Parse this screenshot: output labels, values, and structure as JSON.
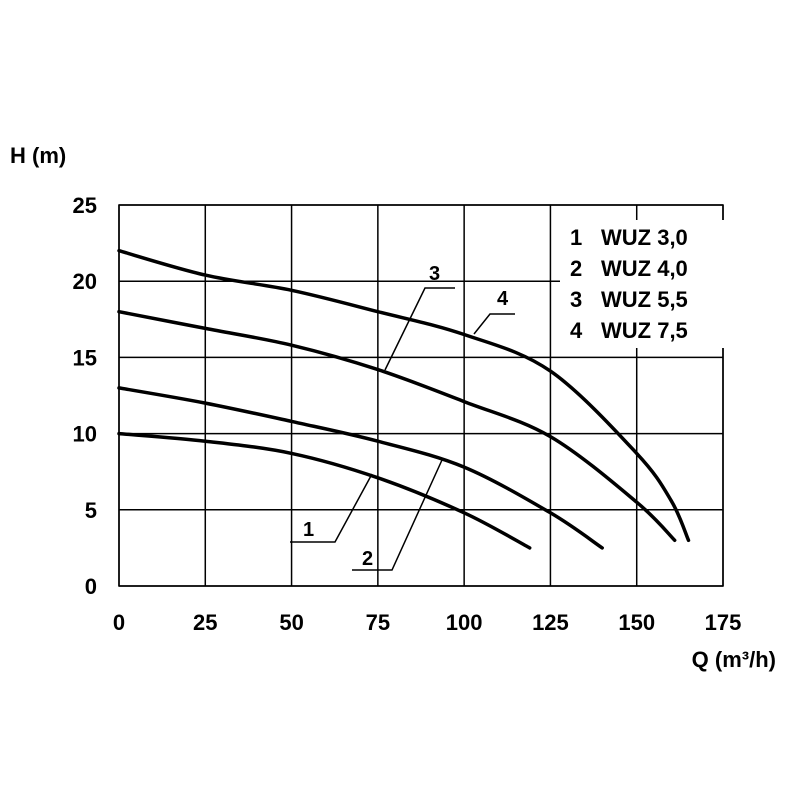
{
  "chart_data": {
    "type": "line",
    "ylabel": "H (m)",
    "xlabel": "Q (m³/h)",
    "xlim": [
      0,
      175
    ],
    "ylim": [
      0,
      25
    ],
    "x_ticks": [
      0,
      25,
      50,
      75,
      100,
      125,
      150,
      175
    ],
    "y_ticks": [
      0,
      5,
      10,
      15,
      20,
      25
    ],
    "grid": true,
    "legend_position": "top-right",
    "legend": [
      {
        "num": "1",
        "name": "WUZ 3,0"
      },
      {
        "num": "2",
        "name": "WUZ 4,0"
      },
      {
        "num": "3",
        "name": "WUZ 5,5"
      },
      {
        "num": "4",
        "name": "WUZ 7,5"
      }
    ],
    "series": [
      {
        "label": "1",
        "x": [
          0,
          25,
          50,
          75,
          100,
          119
        ],
        "y": [
          10,
          9.5,
          8.7,
          7.1,
          4.8,
          2.5
        ]
      },
      {
        "label": "2",
        "x": [
          0,
          25,
          50,
          75,
          100,
          125,
          140
        ],
        "y": [
          13,
          12,
          10.8,
          9.5,
          7.8,
          4.8,
          2.5
        ]
      },
      {
        "label": "3",
        "x": [
          0,
          25,
          50,
          75,
          100,
          125,
          150,
          161
        ],
        "y": [
          18,
          16.9,
          15.8,
          14.2,
          12.1,
          9.8,
          5.5,
          3
        ]
      },
      {
        "label": "4",
        "x": [
          0,
          25,
          50,
          75,
          100,
          125,
          150,
          160,
          165
        ],
        "y": [
          22,
          20.4,
          19.4,
          18,
          16.5,
          14.1,
          8.7,
          5.6,
          3
        ]
      }
    ]
  }
}
